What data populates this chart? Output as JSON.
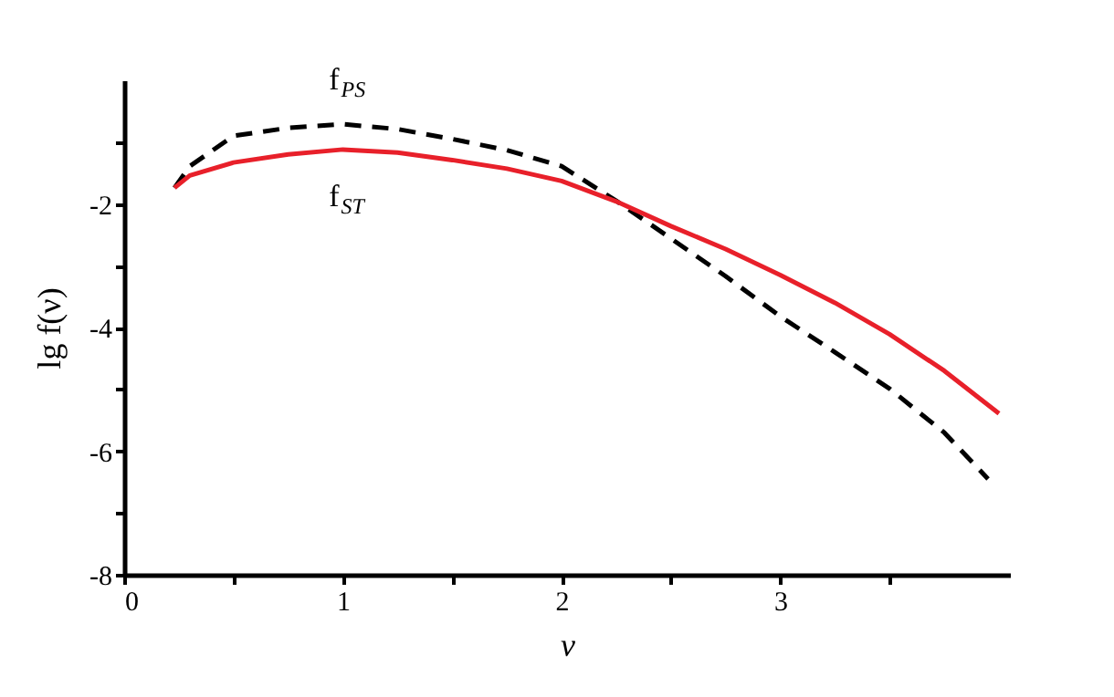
{
  "chart_data": {
    "type": "line",
    "xlabel": "ν",
    "ylabel": "lg  f(ν)",
    "x": [
      0.23,
      0.3,
      0.5,
      0.75,
      1,
      1.25,
      1.5,
      1.75,
      2,
      2.25,
      2.5,
      2.75,
      3,
      3.25,
      3.5,
      3.75,
      4
    ],
    "series": [
      {
        "name": "f$_{PS}$",
        "color": "#000000",
        "line_style": "dashed",
        "x": [
          0.23,
          0.3,
          0.5,
          0.75,
          1,
          1.25,
          1.5,
          1.75,
          2,
          2.25,
          2.5,
          2.75,
          3,
          3.25,
          3.5,
          3.75,
          3.95
        ],
        "values": [
          -1.74,
          -1.39,
          -0.9,
          -0.77,
          -0.71,
          -0.79,
          -0.95,
          -1.13,
          -1.39,
          -1.95,
          -2.56,
          -3.17,
          -3.82,
          -4.4,
          -4.99,
          -5.7,
          -6.45
        ]
      },
      {
        "name": "f$_{ST}$",
        "color": "#e8202a",
        "line_style": "solid",
        "values": [
          -1.74,
          -1.54,
          -1.33,
          -1.2,
          -1.12,
          -1.17,
          -1.29,
          -1.43,
          -1.63,
          -1.96,
          -2.36,
          -2.73,
          -3.15,
          -3.6,
          -4.11,
          -4.7,
          -5.39
        ]
      }
    ],
    "xlim": [
      0,
      4.05
    ],
    "ylim": [
      -8,
      0
    ],
    "xticks": [
      0,
      {
        "value": 0.5,
        "label": null
      },
      1,
      {
        "value": 1.5,
        "label": null
      },
      2,
      {
        "value": 2.5,
        "label": null
      },
      3,
      {
        "value": 3.5,
        "label": null
      }
    ],
    "yticks": [
      -8,
      {
        "value": -7,
        "label": null
      },
      -6,
      {
        "value": -5,
        "label": null
      },
      -4,
      {
        "value": -3,
        "label": null
      },
      -2,
      {
        "value": -1,
        "label": null
      }
    ],
    "grid": false
  }
}
